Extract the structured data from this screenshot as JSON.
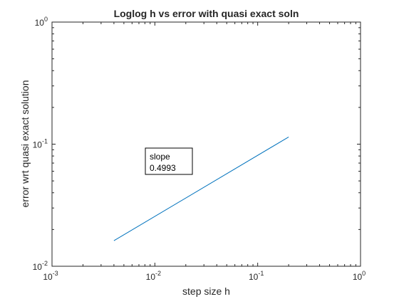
{
  "chart_data": {
    "type": "line",
    "title": "Loglog h vs error with quasi exact soln",
    "xlabel": "step size h",
    "ylabel": "error wrt quasi exact solution",
    "xscale": "log",
    "yscale": "log",
    "xlim": [
      0.001,
      1
    ],
    "ylim": [
      0.01,
      1
    ],
    "grid": false,
    "x_ticks": [
      {
        "value": 0.001,
        "base": "10",
        "exp": "-3"
      },
      {
        "value": 0.01,
        "base": "10",
        "exp": "-2"
      },
      {
        "value": 0.1,
        "base": "10",
        "exp": "-1"
      },
      {
        "value": 1,
        "base": "10",
        "exp": "0"
      }
    ],
    "y_ticks": [
      {
        "value": 0.01,
        "base": "10",
        "exp": "-2"
      },
      {
        "value": 0.1,
        "base": "10",
        "exp": "-1"
      },
      {
        "value": 1,
        "base": "10",
        "exp": "0"
      }
    ],
    "series": [
      {
        "color": "#0072bd",
        "x": [
          0.004,
          0.2
        ],
        "y": [
          0.0162,
          0.1145
        ]
      }
    ],
    "annotation": {
      "line1": "slope",
      "line2": "0.4993"
    }
  }
}
